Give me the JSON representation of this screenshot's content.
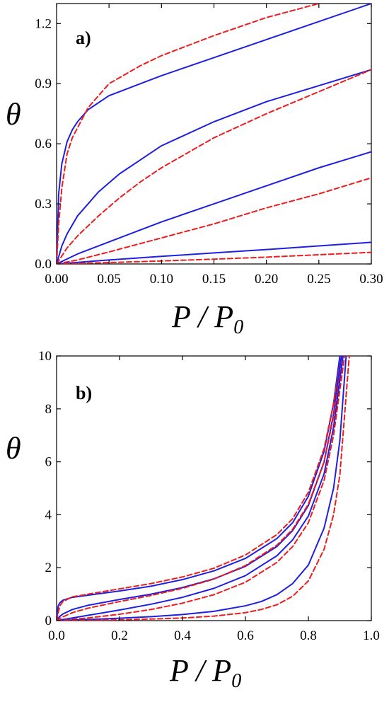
{
  "colors": {
    "model": "#1f1fe0",
    "reference": "#ee1c1c",
    "axis": "#000000"
  },
  "chart_data": [
    {
      "type": "line",
      "panel_label": "a)",
      "xlabel_main": "P / P",
      "xlabel_sub": "0",
      "ylabel": "θ",
      "xlim": [
        0,
        0.3
      ],
      "ylim": [
        0,
        1.3
      ],
      "xticks": [
        0.0,
        0.05,
        0.1,
        0.15,
        0.2,
        0.25,
        0.3
      ],
      "xtick_labels": [
        "0.00",
        "0.05",
        "0.10",
        "0.15",
        "0.20",
        "0.25",
        "0.30"
      ],
      "yticks": [
        0.0,
        0.3,
        0.6,
        0.9,
        1.2
      ],
      "ytick_labels": [
        "0.0",
        "0.3",
        "0.6",
        "0.9",
        "1.2"
      ],
      "grid": false,
      "series": [
        {
          "style": "solid",
          "color": "#1f1fe0",
          "x": [
            0,
            0.002,
            0.005,
            0.01,
            0.015,
            0.02,
            0.03,
            0.05,
            0.08,
            0.1,
            0.15,
            0.2,
            0.25,
            0.3
          ],
          "y": [
            0,
            0.35,
            0.5,
            0.61,
            0.67,
            0.71,
            0.77,
            0.84,
            0.9,
            0.94,
            1.03,
            1.12,
            1.21,
            1.3
          ]
        },
        {
          "style": "dashed",
          "color": "#ee1c1c",
          "x": [
            0,
            0.002,
            0.005,
            0.01,
            0.015,
            0.02,
            0.03,
            0.05,
            0.08,
            0.1,
            0.15,
            0.2,
            0.25
          ],
          "y": [
            0,
            0.2,
            0.38,
            0.55,
            0.63,
            0.68,
            0.78,
            0.9,
            0.99,
            1.04,
            1.14,
            1.23,
            1.3
          ]
        },
        {
          "style": "solid",
          "color": "#1f1fe0",
          "x": [
            0,
            0.005,
            0.01,
            0.02,
            0.04,
            0.06,
            0.08,
            0.1,
            0.15,
            0.2,
            0.25,
            0.3
          ],
          "y": [
            0,
            0.09,
            0.15,
            0.24,
            0.36,
            0.45,
            0.52,
            0.59,
            0.71,
            0.81,
            0.89,
            0.97
          ]
        },
        {
          "style": "dashed",
          "color": "#ee1c1c",
          "x": [
            0,
            0.005,
            0.01,
            0.02,
            0.04,
            0.06,
            0.08,
            0.1,
            0.15,
            0.2,
            0.25,
            0.3
          ],
          "y": [
            0,
            0.04,
            0.08,
            0.14,
            0.24,
            0.33,
            0.41,
            0.48,
            0.63,
            0.75,
            0.86,
            0.97
          ]
        },
        {
          "style": "solid",
          "color": "#1f1fe0",
          "x": [
            0,
            0.02,
            0.05,
            0.1,
            0.15,
            0.2,
            0.25,
            0.3
          ],
          "y": [
            0,
            0.05,
            0.11,
            0.21,
            0.3,
            0.39,
            0.48,
            0.56
          ]
        },
        {
          "style": "dashed",
          "color": "#ee1c1c",
          "x": [
            0,
            0.02,
            0.05,
            0.1,
            0.15,
            0.2,
            0.25,
            0.3
          ],
          "y": [
            0,
            0.02,
            0.06,
            0.13,
            0.2,
            0.28,
            0.35,
            0.43
          ]
        },
        {
          "style": "solid",
          "color": "#1f1fe0",
          "x": [
            0,
            0.05,
            0.1,
            0.15,
            0.2,
            0.25,
            0.3
          ],
          "y": [
            0,
            0.02,
            0.038,
            0.055,
            0.072,
            0.09,
            0.108
          ]
        },
        {
          "style": "dashed",
          "color": "#ee1c1c",
          "x": [
            0,
            0.05,
            0.1,
            0.15,
            0.2,
            0.25,
            0.3
          ],
          "y": [
            0,
            0.007,
            0.015,
            0.024,
            0.034,
            0.046,
            0.058
          ]
        }
      ]
    },
    {
      "type": "line",
      "panel_label": "b)",
      "xlabel_main": "P / P",
      "xlabel_sub": "0",
      "ylabel": "θ",
      "xlim": [
        0,
        1.0
      ],
      "ylim": [
        0,
        10
      ],
      "xticks": [
        0.0,
        0.2,
        0.4,
        0.6,
        0.8,
        1.0
      ],
      "xtick_labels": [
        "0.0",
        "0.2",
        "0.4",
        "0.6",
        "0.8",
        "1.0"
      ],
      "yticks": [
        0,
        2,
        4,
        6,
        8,
        10
      ],
      "ytick_labels": [
        "0",
        "2",
        "4",
        "6",
        "8",
        "10"
      ],
      "grid": false,
      "series": [
        {
          "style": "solid",
          "color": "#1f1fe0",
          "x": [
            0,
            0.005,
            0.01,
            0.02,
            0.05,
            0.1,
            0.2,
            0.3,
            0.4,
            0.5,
            0.6,
            0.7,
            0.75,
            0.8,
            0.85,
            0.88,
            0.9
          ],
          "y": [
            0,
            0.55,
            0.67,
            0.77,
            0.88,
            0.96,
            1.12,
            1.3,
            1.55,
            1.88,
            2.35,
            3.1,
            3.7,
            4.7,
            6.4,
            8.2,
            10.0
          ]
        },
        {
          "style": "dashed",
          "color": "#ee1c1c",
          "x": [
            0,
            0.01,
            0.02,
            0.05,
            0.1,
            0.2,
            0.3,
            0.4,
            0.5,
            0.6,
            0.7,
            0.75,
            0.8,
            0.85,
            0.88,
            0.905
          ],
          "y": [
            0,
            0.55,
            0.72,
            0.9,
            1.0,
            1.2,
            1.4,
            1.65,
            1.98,
            2.48,
            3.25,
            3.85,
            4.85,
            6.5,
            8.2,
            10.0
          ]
        },
        {
          "style": "solid",
          "color": "#1f1fe0",
          "x": [
            0,
            0.01,
            0.02,
            0.05,
            0.1,
            0.2,
            0.3,
            0.4,
            0.5,
            0.6,
            0.7,
            0.75,
            0.8,
            0.85,
            0.88,
            0.905
          ],
          "y": [
            0,
            0.16,
            0.25,
            0.42,
            0.58,
            0.8,
            1.0,
            1.25,
            1.58,
            2.05,
            2.8,
            3.4,
            4.35,
            6.0,
            7.8,
            10.0
          ]
        },
        {
          "style": "dashed",
          "color": "#ee1c1c",
          "x": [
            0,
            0.01,
            0.02,
            0.05,
            0.1,
            0.2,
            0.3,
            0.4,
            0.5,
            0.6,
            0.7,
            0.75,
            0.8,
            0.85,
            0.88,
            0.91
          ],
          "y": [
            0,
            0.08,
            0.14,
            0.3,
            0.47,
            0.72,
            0.95,
            1.22,
            1.57,
            2.08,
            2.85,
            3.45,
            4.4,
            6.0,
            7.7,
            10.0
          ]
        },
        {
          "style": "solid",
          "color": "#1f1fe0",
          "x": [
            0,
            0.05,
            0.1,
            0.2,
            0.3,
            0.4,
            0.5,
            0.6,
            0.7,
            0.75,
            0.8,
            0.85,
            0.88,
            0.91
          ],
          "y": [
            0,
            0.1,
            0.2,
            0.4,
            0.62,
            0.88,
            1.22,
            1.7,
            2.45,
            3.05,
            3.95,
            5.55,
            7.3,
            10.0
          ]
        },
        {
          "style": "dashed",
          "color": "#ee1c1c",
          "x": [
            0,
            0.05,
            0.1,
            0.2,
            0.3,
            0.4,
            0.5,
            0.6,
            0.7,
            0.75,
            0.8,
            0.85,
            0.88,
            0.915
          ],
          "y": [
            0,
            0.05,
            0.1,
            0.24,
            0.42,
            0.66,
            0.98,
            1.45,
            2.2,
            2.8,
            3.7,
            5.3,
            7.0,
            10.0
          ]
        },
        {
          "style": "solid",
          "color": "#1f1fe0",
          "x": [
            0,
            0.1,
            0.2,
            0.3,
            0.4,
            0.5,
            0.6,
            0.65,
            0.7,
            0.75,
            0.8,
            0.85,
            0.88,
            0.9,
            0.92
          ],
          "y": [
            0,
            0.04,
            0.09,
            0.15,
            0.23,
            0.35,
            0.56,
            0.72,
            0.98,
            1.4,
            2.1,
            3.5,
            5.0,
            6.8,
            10.0
          ]
        },
        {
          "style": "dashed",
          "color": "#ee1c1c",
          "x": [
            0,
            0.1,
            0.2,
            0.3,
            0.4,
            0.5,
            0.6,
            0.65,
            0.7,
            0.75,
            0.8,
            0.85,
            0.88,
            0.9,
            0.93
          ],
          "y": [
            0,
            0.01,
            0.03,
            0.06,
            0.1,
            0.17,
            0.3,
            0.42,
            0.6,
            0.92,
            1.5,
            2.7,
            4.0,
            5.5,
            10.0
          ]
        }
      ]
    }
  ]
}
